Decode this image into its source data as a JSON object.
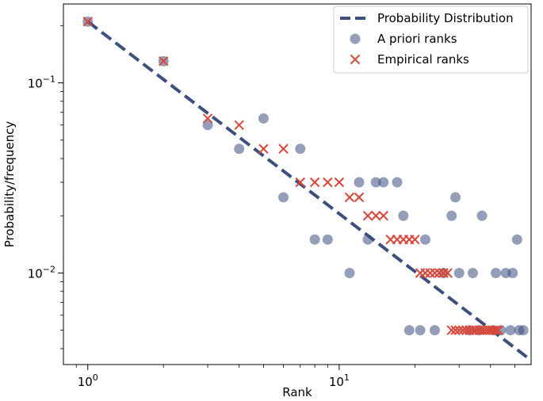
{
  "chart_data": {
    "type": "scatter",
    "xscale": "log",
    "yscale": "log",
    "xlabel": "Rank",
    "ylabel": "Probability/frequency",
    "xlim": [
      0.8,
      58
    ],
    "ylim": [
      0.0033,
      0.26
    ],
    "x_ticks": [
      {
        "value": 1,
        "base": "10",
        "exp": "0"
      },
      {
        "value": 10,
        "base": "10",
        "exp": "1"
      }
    ],
    "y_ticks": [
      {
        "value": 0.01,
        "base": "10",
        "exp": "−2"
      },
      {
        "value": 0.1,
        "base": "10",
        "exp": "−1"
      }
    ],
    "legend_position": "top-right",
    "series": [
      {
        "name": "Probability Distribution",
        "kind": "dashed-line",
        "color": "#3d4f7d",
        "x": [
          1,
          56
        ],
        "y": [
          0.21,
          0.0036
        ]
      },
      {
        "name": "A priori ranks",
        "kind": "circle",
        "color": "#3d4f7d",
        "points": [
          [
            1,
            0.21
          ],
          [
            2,
            0.13
          ],
          [
            3,
            0.06
          ],
          [
            4,
            0.045
          ],
          [
            5,
            0.065
          ],
          [
            6,
            0.025
          ],
          [
            7,
            0.045
          ],
          [
            8,
            0.015
          ],
          [
            9,
            0.015
          ],
          [
            11,
            0.01
          ],
          [
            12,
            0.03
          ],
          [
            13,
            0.015
          ],
          [
            14,
            0.03
          ],
          [
            15,
            0.03
          ],
          [
            17,
            0.03
          ],
          [
            18,
            0.02
          ],
          [
            19,
            0.005
          ],
          [
            21,
            0.005
          ],
          [
            22,
            0.015
          ],
          [
            24,
            0.005
          ],
          [
            26,
            0.01
          ],
          [
            28,
            0.02
          ],
          [
            29,
            0.025
          ],
          [
            30,
            0.01
          ],
          [
            33,
            0.005
          ],
          [
            34,
            0.01
          ],
          [
            36,
            0.005
          ],
          [
            37,
            0.02
          ],
          [
            41,
            0.005
          ],
          [
            42,
            0.01
          ],
          [
            44,
            0.005
          ],
          [
            46,
            0.01
          ],
          [
            48,
            0.005
          ],
          [
            49,
            0.01
          ],
          [
            51,
            0.015
          ],
          [
            52,
            0.005
          ],
          [
            54,
            0.005
          ]
        ]
      },
      {
        "name": "Empirical ranks",
        "kind": "x",
        "color": "#d9473a",
        "points": [
          [
            1,
            0.21
          ],
          [
            2,
            0.13
          ],
          [
            3,
            0.065
          ],
          [
            4,
            0.06
          ],
          [
            5,
            0.045
          ],
          [
            6,
            0.045
          ],
          [
            7,
            0.03
          ],
          [
            8,
            0.03
          ],
          [
            9,
            0.03
          ],
          [
            10,
            0.03
          ],
          [
            11,
            0.025
          ],
          [
            12,
            0.025
          ],
          [
            13,
            0.02
          ],
          [
            14,
            0.02
          ],
          [
            15,
            0.02
          ],
          [
            16,
            0.015
          ],
          [
            17,
            0.015
          ],
          [
            18,
            0.015
          ],
          [
            19,
            0.015
          ],
          [
            20,
            0.015
          ],
          [
            21,
            0.01
          ],
          [
            22,
            0.01
          ],
          [
            23,
            0.01
          ],
          [
            24,
            0.01
          ],
          [
            25,
            0.01
          ],
          [
            26,
            0.01
          ],
          [
            27,
            0.01
          ],
          [
            28,
            0.005
          ],
          [
            29,
            0.005
          ],
          [
            30,
            0.005
          ],
          [
            31,
            0.005
          ],
          [
            32,
            0.005
          ],
          [
            33,
            0.005
          ],
          [
            34,
            0.005
          ],
          [
            35,
            0.005
          ],
          [
            36,
            0.005
          ],
          [
            37,
            0.005
          ],
          [
            38,
            0.005
          ],
          [
            39,
            0.005
          ],
          [
            40,
            0.005
          ],
          [
            41,
            0.005
          ],
          [
            42,
            0.005
          ],
          [
            43,
            0.005
          ]
        ]
      }
    ]
  }
}
